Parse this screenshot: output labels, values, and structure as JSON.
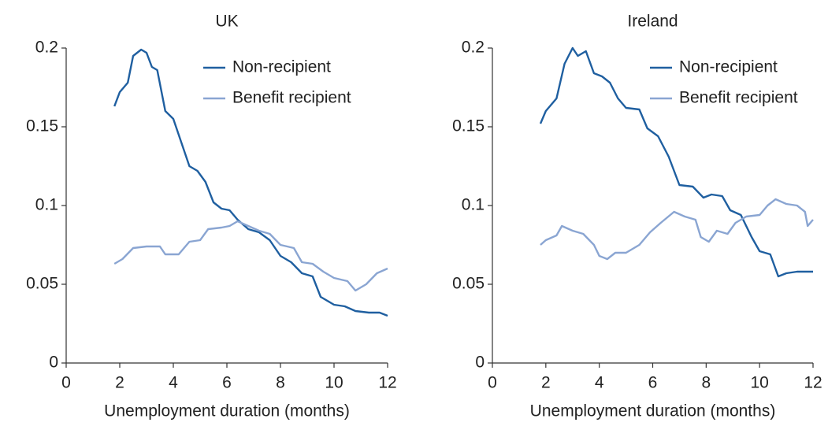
{
  "chart_data": [
    {
      "type": "line",
      "title": "UK",
      "xlabel": "Unemployment duration (months)",
      "xlim": [
        0,
        12
      ],
      "xticks": [
        0,
        2,
        4,
        6,
        8,
        10,
        12
      ],
      "ylim": [
        0,
        0.2
      ],
      "yticks": [
        0,
        0.05,
        0.1,
        0.15,
        0.2
      ],
      "legend": "upper right",
      "series": [
        {
          "name": "Non-recipient",
          "color": "#1f5fa0",
          "x": [
            1.8,
            2.0,
            2.3,
            2.5,
            2.8,
            3.0,
            3.2,
            3.4,
            3.7,
            4.0,
            4.3,
            4.6,
            4.9,
            5.2,
            5.5,
            5.8,
            6.1,
            6.4,
            6.8,
            7.2,
            7.6,
            8.0,
            8.4,
            8.8,
            9.2,
            9.5,
            10.0,
            10.4,
            10.8,
            11.3,
            11.7,
            12.0
          ],
          "values": [
            0.163,
            0.172,
            0.178,
            0.195,
            0.199,
            0.197,
            0.188,
            0.186,
            0.16,
            0.155,
            0.14,
            0.125,
            0.122,
            0.115,
            0.102,
            0.098,
            0.097,
            0.091,
            0.085,
            0.083,
            0.078,
            0.068,
            0.064,
            0.057,
            0.055,
            0.042,
            0.037,
            0.036,
            0.033,
            0.032,
            0.032,
            0.03
          ]
        },
        {
          "name": "Benefit recipient",
          "color": "#8aa5d2",
          "x": [
            1.8,
            2.1,
            2.5,
            3.0,
            3.5,
            3.7,
            4.2,
            4.6,
            5.0,
            5.3,
            5.8,
            6.1,
            6.4,
            6.8,
            7.2,
            7.6,
            8.0,
            8.5,
            8.8,
            9.2,
            9.6,
            10.0,
            10.5,
            10.8,
            11.2,
            11.6,
            12.0
          ],
          "values": [
            0.063,
            0.066,
            0.073,
            0.074,
            0.074,
            0.069,
            0.069,
            0.077,
            0.078,
            0.085,
            0.086,
            0.087,
            0.09,
            0.087,
            0.084,
            0.082,
            0.075,
            0.073,
            0.064,
            0.063,
            0.058,
            0.054,
            0.052,
            0.046,
            0.05,
            0.057,
            0.06
          ]
        }
      ]
    },
    {
      "type": "line",
      "title": "Ireland",
      "xlabel": "Unemployment duration (months)",
      "xlim": [
        0,
        12
      ],
      "xticks": [
        0,
        2,
        4,
        6,
        8,
        10,
        12
      ],
      "ylim": [
        0,
        0.2
      ],
      "yticks": [
        0,
        0.05,
        0.1,
        0.15,
        0.2
      ],
      "legend": "upper right",
      "series": [
        {
          "name": "Non-recipient",
          "color": "#1f5fa0",
          "x": [
            1.8,
            2.0,
            2.4,
            2.7,
            3.0,
            3.2,
            3.5,
            3.8,
            4.1,
            4.4,
            4.7,
            5.0,
            5.5,
            5.8,
            6.2,
            6.6,
            7.0,
            7.5,
            7.9,
            8.2,
            8.6,
            8.9,
            9.3,
            9.7,
            10.0,
            10.4,
            10.7,
            11.0,
            11.4,
            12.0
          ],
          "values": [
            0.152,
            0.16,
            0.168,
            0.19,
            0.2,
            0.195,
            0.198,
            0.184,
            0.182,
            0.178,
            0.168,
            0.162,
            0.161,
            0.149,
            0.144,
            0.131,
            0.113,
            0.112,
            0.105,
            0.107,
            0.106,
            0.097,
            0.094,
            0.08,
            0.071,
            0.069,
            0.055,
            0.057,
            0.058,
            0.058
          ]
        },
        {
          "name": "Benefit recipient",
          "color": "#8aa5d2",
          "x": [
            1.8,
            2.0,
            2.4,
            2.6,
            3.0,
            3.4,
            3.8,
            4.0,
            4.3,
            4.6,
            5.0,
            5.5,
            5.9,
            6.3,
            6.8,
            7.2,
            7.6,
            7.8,
            8.1,
            8.4,
            8.8,
            9.1,
            9.5,
            10.0,
            10.3,
            10.6,
            11.0,
            11.4,
            11.7,
            11.8,
            12.0
          ],
          "values": [
            0.075,
            0.078,
            0.081,
            0.087,
            0.084,
            0.082,
            0.075,
            0.068,
            0.066,
            0.07,
            0.07,
            0.075,
            0.083,
            0.089,
            0.096,
            0.093,
            0.091,
            0.08,
            0.077,
            0.084,
            0.082,
            0.089,
            0.093,
            0.094,
            0.1,
            0.104,
            0.101,
            0.1,
            0.096,
            0.087,
            0.091
          ]
        }
      ]
    }
  ]
}
